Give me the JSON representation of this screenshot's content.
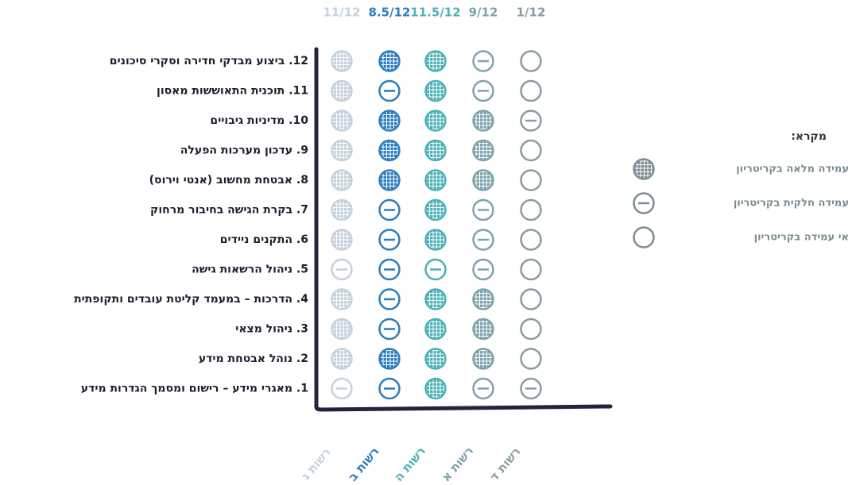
{
  "columns": [
    {
      "name": "רשות ג",
      "score": "11/12",
      "color": "#c5d2de"
    },
    {
      "name": "רשות ב",
      "score": "8.5/12",
      "color": "#2d7dbf"
    },
    {
      "name": "רשות ה",
      "score": "11.5/12",
      "color": "#4cb2b7"
    },
    {
      "name": "רשות א",
      "score": "9/12",
      "color": "#7ea2ac"
    },
    {
      "name": "רשות ד",
      "score": "1/12",
      "color": "#8b9ba1"
    }
  ],
  "rows": [
    {
      "label": "12. ביצוע מבדקי חדירה וסקרי סיכונים",
      "status": [
        "full",
        "full",
        "full",
        "partial",
        "none"
      ]
    },
    {
      "label": "11. תוכנית התאוששות מאסון",
      "status": [
        "full",
        "partial",
        "full",
        "partial",
        "none"
      ]
    },
    {
      "label": "10. מדיניות גיבויים",
      "status": [
        "full",
        "full",
        "full",
        "full",
        "partial"
      ]
    },
    {
      "label": "9. עדכון מערכות הפעלה",
      "status": [
        "full",
        "full",
        "full",
        "full",
        "none"
      ]
    },
    {
      "label": "8. אבטחת מחשוב (אנטי וירוס)",
      "status": [
        "full",
        "full",
        "full",
        "full",
        "none"
      ]
    },
    {
      "label": "7. בקרת הגישה בחיבור מרחוק",
      "status": [
        "full",
        "partial",
        "full",
        "partial",
        "none"
      ]
    },
    {
      "label": "6. התקנים ניידים",
      "status": [
        "full",
        "partial",
        "full",
        "partial",
        "none"
      ]
    },
    {
      "label": "5. ניהול הרשאות גישה",
      "status": [
        "partial",
        "partial",
        "partial",
        "partial",
        "none"
      ]
    },
    {
      "label": "4. הדרכות – במעמד קליטת עובדים ותקופתית",
      "status": [
        "full",
        "partial",
        "full",
        "full",
        "none"
      ]
    },
    {
      "label": "3. ניהול מצאי",
      "status": [
        "full",
        "partial",
        "full",
        "full",
        "none"
      ]
    },
    {
      "label": "2. נוהל אבטחת מידע",
      "status": [
        "full",
        "full",
        "full",
        "full",
        "none"
      ]
    },
    {
      "label": "1. מאגרי מידע – רישום ומסמך הגדרות מידע",
      "status": [
        "partial",
        "partial",
        "full",
        "partial",
        "partial"
      ]
    }
  ],
  "legend": {
    "title": "מקרא:",
    "color": "#7f8d92",
    "items": [
      {
        "label": "עמידה מלאה בקריטריון",
        "status": "full"
      },
      {
        "label": "עמידה חלקית בקריטריון",
        "status": "partial"
      },
      {
        "label": "אי עמידה בקריטריון",
        "status": "none"
      }
    ]
  }
}
